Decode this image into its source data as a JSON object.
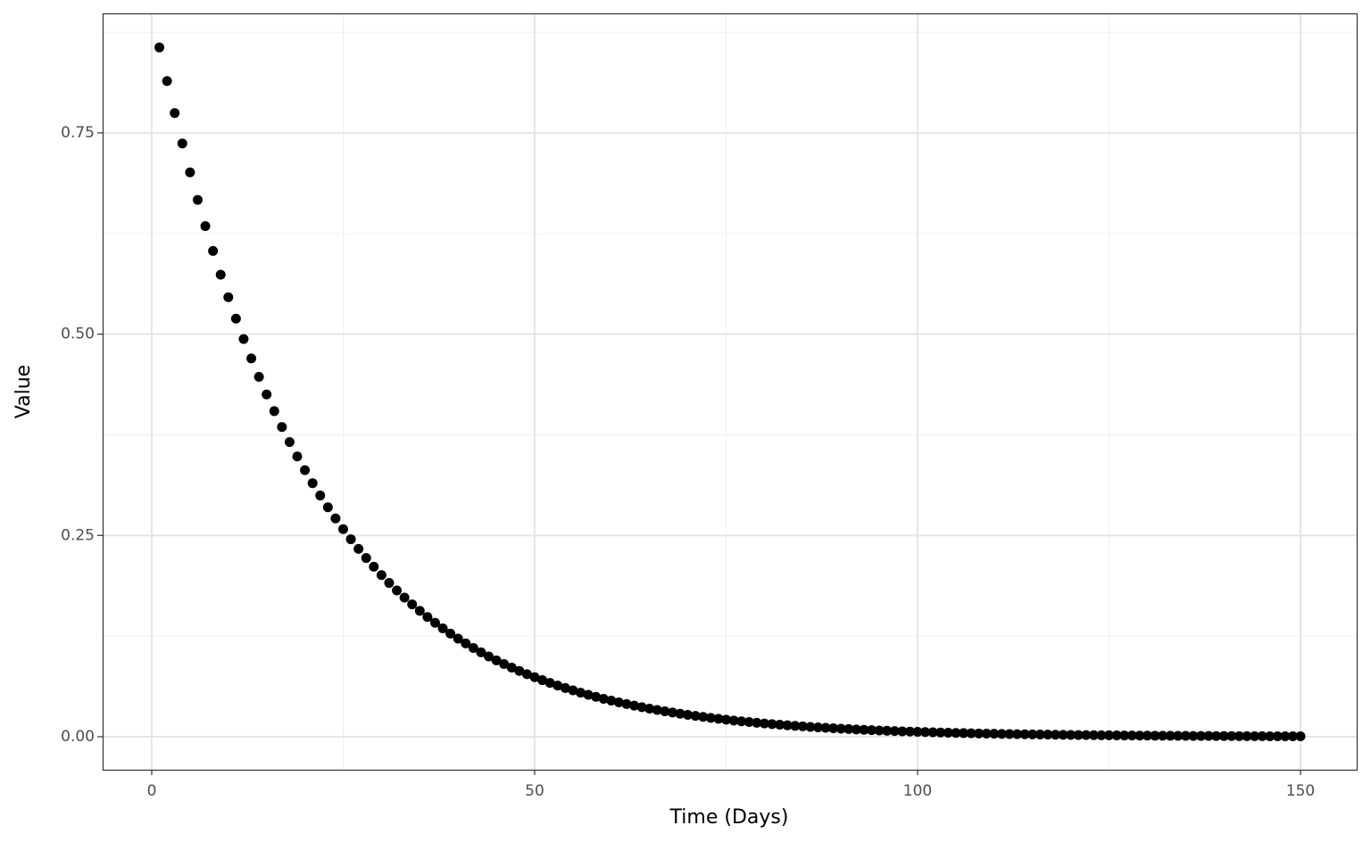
{
  "chart_data": {
    "type": "scatter",
    "x_label": "Time (Days)",
    "y_label": "Value",
    "color": "#000000",
    "x": [
      1,
      2,
      3,
      4,
      5,
      6,
      7,
      8,
      9,
      10,
      11,
      12,
      13,
      14,
      15,
      16,
      17,
      18,
      19,
      20,
      21,
      22,
      23,
      24,
      25,
      26,
      27,
      28,
      29,
      30,
      31,
      32,
      33,
      34,
      35,
      36,
      37,
      38,
      39,
      40,
      41,
      42,
      43,
      44,
      45,
      46,
      47,
      48,
      49,
      50,
      51,
      52,
      53,
      54,
      55,
      56,
      57,
      58,
      59,
      60,
      61,
      62,
      63,
      64,
      65,
      66,
      67,
      68,
      69,
      70,
      71,
      72,
      73,
      74,
      75,
      76,
      77,
      78,
      79,
      80,
      81,
      82,
      83,
      84,
      85,
      86,
      87,
      88,
      89,
      90,
      91,
      92,
      93,
      94,
      95,
      96,
      97,
      98,
      99,
      100,
      101,
      102,
      103,
      104,
      105,
      106,
      107,
      108,
      109,
      110,
      111,
      112,
      113,
      114,
      115,
      116,
      117,
      118,
      119,
      120,
      121,
      122,
      123,
      124,
      125,
      126,
      127,
      128,
      129,
      130,
      131,
      132,
      133,
      134,
      135,
      136,
      137,
      138,
      139,
      140,
      141,
      142,
      143,
      144,
      145,
      146,
      147,
      148,
      149,
      150
    ],
    "values": [
      0.85611,
      0.81436,
      0.77464,
      0.73686,
      0.70092,
      0.66674,
      0.63422,
      0.60329,
      0.57387,
      0.54588,
      0.51926,
      0.49393,
      0.46984,
      0.44693,
      0.42513,
      0.4044,
      0.38468,
      0.36592,
      0.34807,
      0.33109,
      0.31494,
      0.29958,
      0.28497,
      0.27107,
      0.25785,
      0.24528,
      0.23331,
      0.22193,
      0.21111,
      0.20081,
      0.19102,
      0.1817,
      0.17284,
      0.16441,
      0.15639,
      0.14876,
      0.14151,
      0.13461,
      0.12804,
      0.1218,
      0.11586,
      0.11021,
      0.10484,
      0.09972,
      0.09486,
      0.09023,
      0.08583,
      0.08165,
      0.07767,
      0.07388,
      0.07027,
      0.06685,
      0.06359,
      0.06049,
      0.05754,
      0.05473,
      0.05206,
      0.04952,
      0.04711,
      0.04481,
      0.04262,
      0.04055,
      0.03857,
      0.03669,
      0.0349,
      0.0332,
      0.03158,
      0.03004,
      0.02857,
      0.02718,
      0.02585,
      0.02459,
      0.02339,
      0.02225,
      0.02117,
      0.02013,
      0.01915,
      0.01822,
      0.01733,
      0.01648,
      0.01568,
      0.01492,
      0.01419,
      0.0135,
      0.01284,
      0.01221,
      0.01162,
      0.01105,
      0.01051,
      0.01,
      0.00951,
      0.00905,
      0.00861,
      0.00819,
      0.00779,
      0.00741,
      0.00705,
      0.0067,
      0.00638,
      0.00606,
      0.00577,
      0.00549,
      0.00522,
      0.00497,
      0.00472,
      0.00449,
      0.00427,
      0.00407,
      0.00387,
      0.00368,
      0.0035,
      0.00333,
      0.00317,
      0.00301,
      0.00287,
      0.00273,
      0.00259,
      0.00247,
      0.00235,
      0.00223,
      0.00212,
      0.00202,
      0.00192,
      0.00183,
      0.00174,
      0.00165,
      0.00157,
      0.0015,
      0.00142,
      0.00135,
      0.00129,
      0.00123,
      0.00117,
      0.00111,
      0.00106,
      0.001,
      0.00095,
      0.00091,
      0.00086,
      0.00082,
      0.00078,
      0.00074,
      0.00071,
      0.00067,
      0.00064,
      0.00061,
      0.00058,
      0.00055,
      0.00052,
      0.0005
    ],
    "xlim": [
      -6.41,
      157.34
    ],
    "ylim": [
      -0.041,
      0.8984
    ],
    "xticks": [
      0,
      50,
      100,
      150
    ],
    "yticks": [
      {
        "value": 0,
        "label": "0.00"
      },
      {
        "value": 0.25,
        "label": "0.25"
      },
      {
        "value": 0.5,
        "label": "0.50"
      },
      {
        "value": 0.75,
        "label": "0.75"
      }
    ],
    "x_minor_grid": [
      25,
      75,
      125
    ],
    "y_minor_grid": [
      0.125,
      0.375,
      0.625,
      0.875
    ],
    "grid": true
  }
}
